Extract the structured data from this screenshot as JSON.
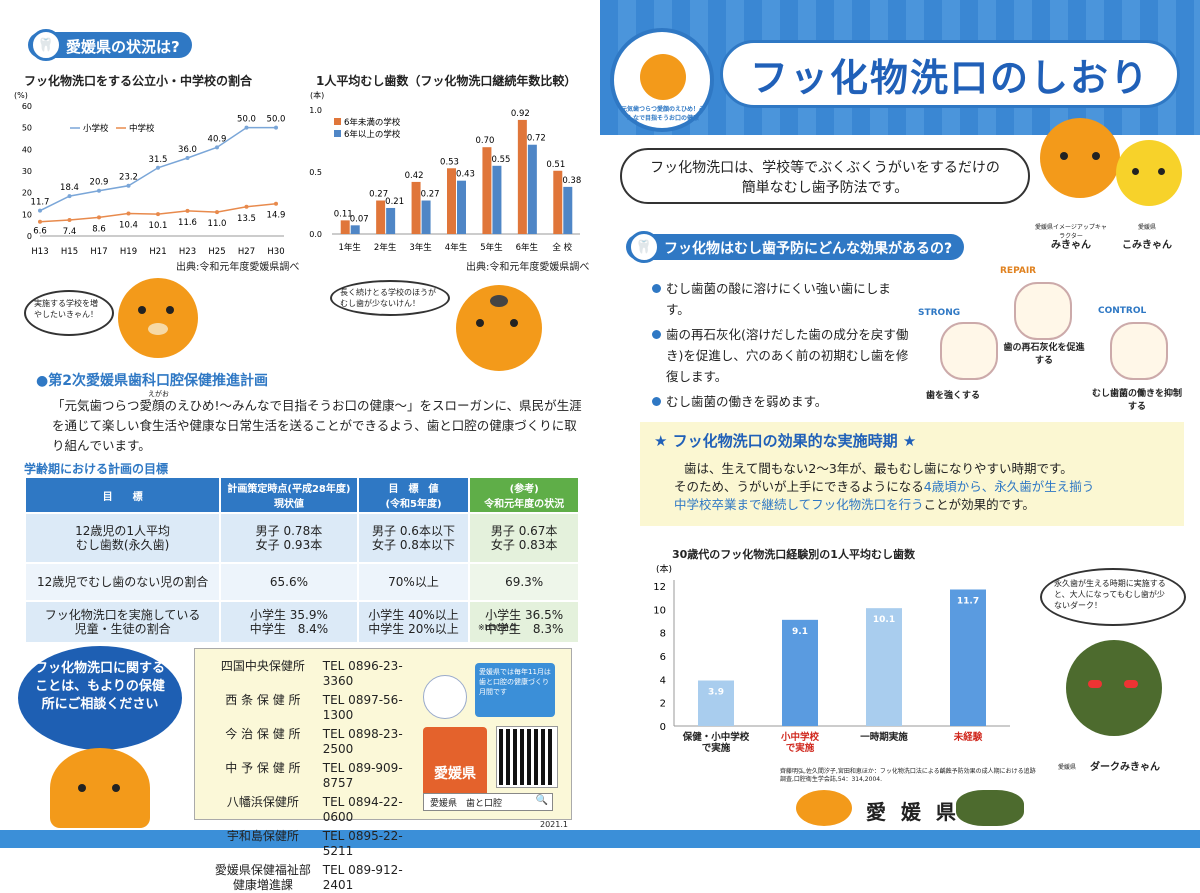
{
  "left": {
    "section1_title": "愛媛県の状況は?",
    "chart1": {
      "title": "フッ化物洗口をする公立小・中学校の割合",
      "yunit": "(%)",
      "source": "出典:令和元年度愛媛県調べ"
    },
    "chart2": {
      "title": "1人平均むし歯数（フッ化物洗口継続年数比較）",
      "yunit": "(本)",
      "source": "出典:令和元年度愛媛県調べ"
    },
    "bubble1": "実施する学校を増やしたいきゃん！",
    "bubble2": "長く続けとる学校のほうがむし歯が少ないけん！",
    "plan_title": "●第2次愛媛県歯科口腔保健推進計画",
    "plan_ruby": "えがお",
    "plan_text": "「元気歯つらつ愛顔のえひめ!～みんなで目指そうお口の健康～」をスローガンに、県民が生涯を通じて楽しい食生活や健康な日常生活を送ることができるよう、歯と口腔の健康づくりに取り組んでいます。",
    "goal_title": "学齢期における計画の目標",
    "table": {
      "headers": [
        "目　　標",
        "計画策定時点(平成28年度)\n現状値",
        "目　標　値\n(令和5年度)",
        "(参考)\n令和元年度の状況"
      ],
      "rows": [
        [
          "12歳児の1人平均\nむし歯数(永久歯)",
          "男子 0.78本\n女子 0.93本",
          "男子 0.6本以下\n女子 0.8本以下",
          "男子 0.67本\n女子 0.83本"
        ],
        [
          "12歳児でむし歯のない児の割合",
          "65.6%",
          "70%以上",
          "69.3%"
        ],
        [
          "フッ化物洗口を実施している\n児童・生徒の割合",
          "小学生 35.9%\n中学生　8.4%",
          "小学生 40%以上\n中学生 20%以上",
          "小学生 36.5%\n中学生　8.3%"
        ]
      ],
      "note": "※H30時点"
    },
    "consult_blob": "フッ化物洗口に関することは、もよりの保健所にご相談ください",
    "offices": [
      {
        "name": "四国中央保健所",
        "tel": "TEL 0896-23-3360"
      },
      {
        "name": "西 条 保 健 所",
        "tel": "TEL 0897-56-1300"
      },
      {
        "name": "今 治 保 健 所",
        "tel": "TEL 0898-23-2500"
      },
      {
        "name": "中 予 保 健 所",
        "tel": "TEL 089-909-8757"
      },
      {
        "name": "八幡浜保健所",
        "tel": "TEL 0894-22-0600"
      },
      {
        "name": "宇和島保健所",
        "tel": "TEL 0895-22-5211"
      },
      {
        "name": "愛媛県保健福祉部\n健康増進課",
        "tel": "TEL 089-912-2401"
      }
    ],
    "november_note": "愛媛県では毎年11月は歯と口腔の健康づくり月間です",
    "logo_text": "愛媛県",
    "search_text": "愛媛県　歯と口腔",
    "date": "2021.1"
  },
  "right": {
    "title": "フッ化物洗口のしおり",
    "badge_text": "元気歯つらつ愛顔のえひめ！みんなで目指そうお口の健康",
    "intro": "フッ化物洗口は、学校等でぶくぶくうがいをするだけの簡単なむし歯予防法です。",
    "char1_label_small": "愛媛県イメージアップキャラクター",
    "char1_name": "みきゃん",
    "char2_label_small": "愛媛県",
    "char2_name": "こみきゃん",
    "effect_title": "フッ化物はむし歯予防にどんな効果があるの?",
    "effects": [
      "むし歯菌の酸に溶けにくい強い歯にします。",
      "歯の再石灰化(溶けだした歯の成分を戻す働き)を促進し、穴のあく前の初期むし歯を修復します。",
      "むし歯菌の働きを弱めます。"
    ],
    "tooth_labels": {
      "strong": "STRONG",
      "repair": "REPAIR",
      "control": "CONTROL",
      "strong_caption": "歯を強くする",
      "repair_caption": "歯の再石灰化を促進する",
      "control_caption": "むし歯菌の働きを抑制する"
    },
    "timing_title": "★ フッ化物洗口の効果的な実施時期 ★",
    "timing_text1": "歯は、生えて間もない2～3年が、最もむし歯になりやすい時期です。",
    "timing_text2a": "そのため、うがいが上手にできるようになる",
    "timing_text2b": "4歳頃から、永久歯が生え揃う",
    "timing_text3a": "中学校卒業まで継続してフッ化物洗口を行う",
    "timing_text3b": "ことが効果的です。",
    "chart3": {
      "title": "30歳代のフッ化物洗口経験別の1人平均むし歯数",
      "yunit": "(本)",
      "source": "齊藤明弘,佐久間汐子,宮田和恵ほか：フッ化物洗口法による齲蝕予防効果の成人期における追跡調査,口腔衛生学会誌,54：314,2004."
    },
    "bubble3": "永久歯が生える時期に実施すると、大人になってもむし歯が少ないダーク！",
    "dark_label_small": "愛媛県",
    "dark_name": "ダークみきゃん",
    "footer_logo": "愛 媛 県"
  },
  "chart_data": [
    {
      "type": "line",
      "title": "フッ化物洗口をする公立小・中学校の割合",
      "categories": [
        "H13",
        "H15",
        "H17",
        "H19",
        "H21",
        "H23",
        "H25",
        "H27",
        "H30"
      ],
      "series": [
        {
          "name": "小学校",
          "values": [
            11.7,
            18.4,
            20.9,
            23.2,
            31.5,
            36.0,
            40.9,
            50.0,
            50.0
          ],
          "color": "#7aa6d8"
        },
        {
          "name": "中学校",
          "values": [
            6.6,
            7.4,
            8.6,
            10.4,
            10.1,
            11.6,
            11.0,
            13.5,
            14.9
          ],
          "color": "#e88a4c"
        }
      ],
      "ylabel": "(%)",
      "ylim": [
        0,
        60
      ],
      "yticks": [
        0,
        10,
        20,
        30,
        40,
        50,
        60
      ],
      "legend": "top-left",
      "grid": false
    },
    {
      "type": "bar",
      "title": "1人平均むし歯数（フッ化物洗口継続年数比較）",
      "categories": [
        "1年生",
        "2年生",
        "3年生",
        "4年生",
        "5年生",
        "6年生",
        "全 校"
      ],
      "series": [
        {
          "name": "6年未満の学校",
          "values": [
            0.11,
            0.27,
            0.42,
            0.53,
            0.7,
            0.92,
            0.51
          ],
          "color": "#e0763a"
        },
        {
          "name": "6年以上の学校",
          "values": [
            0.07,
            0.21,
            0.27,
            0.43,
            0.55,
            0.72,
            0.38
          ],
          "color": "#4f86c6"
        }
      ],
      "ylabel": "(本)",
      "ylim": [
        0,
        1.0
      ],
      "yticks": [
        0.0,
        0.5,
        1.0
      ],
      "legend": "top-left",
      "grid": false
    },
    {
      "type": "bar",
      "title": "30歳代のフッ化物洗口経験別の1人平均むし歯数",
      "categories": [
        "保健・小中学校\nで実施",
        "小中学校\nで実施",
        "一時期実施",
        "未経験"
      ],
      "category_colors": [
        "#222",
        "#d0281e",
        "#222",
        "#d0281e"
      ],
      "values": [
        3.9,
        9.1,
        10.1,
        11.7
      ],
      "bar_colors": [
        "#a9cdee",
        "#5a9be0",
        "#a9cdee",
        "#5a9be0"
      ],
      "ylabel": "(本)",
      "ylim": [
        0,
        12
      ],
      "yticks": [
        0,
        2,
        4,
        6,
        8,
        10,
        12
      ],
      "grid": false
    }
  ]
}
